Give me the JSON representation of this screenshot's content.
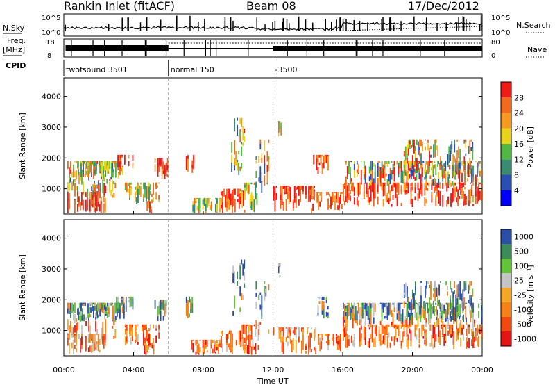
{
  "header": {
    "station": "Rankin Inlet (fitACF)",
    "beam": "Beam 08",
    "date": "17/Dec/2012"
  },
  "strip_labels": {
    "nsky": "N.Sky",
    "freq": "Freq.",
    "freq_unit": "[MHz]",
    "cpid": "CPID",
    "nsearch": "N.Search",
    "nave": "Nave"
  },
  "strip_ticks": {
    "nsky_top": "10^5",
    "nsky_bottom": "10^0",
    "freq_top": "18",
    "freq_bottom": "8",
    "nave_top": "80",
    "nave_bottom": "0"
  },
  "cpid_segments": [
    {
      "label": "twofsound 3501",
      "start": 0,
      "end": 6
    },
    {
      "label": "normal 150",
      "start": 6,
      "end": 12
    },
    {
      "label": "-3500",
      "start": 12,
      "end": 24
    }
  ],
  "colors": {
    "power": [
      "#0000ff",
      "#2a4fb0",
      "#3b8a72",
      "#52b844",
      "#e8d21b",
      "#f59a20",
      "#f26a1b",
      "#ee1b16"
    ],
    "velocity": [
      "#e61515",
      "#f04a10",
      "#f58218",
      "#f5a628",
      "#c4c4c4",
      "#62c436",
      "#3c8c5a",
      "#2b4ea8"
    ]
  },
  "chart_data": [
    {
      "type": "heatmap",
      "title": "",
      "ylabel": "Slant Range [km]",
      "xlabel": "Time UT",
      "x_range_hours": [
        0,
        24
      ],
      "ylim": [
        180,
        4600
      ],
      "xticks": [
        "00:00",
        "04:00",
        "08:00",
        "12:00",
        "16:00",
        "20:00",
        "00:00"
      ],
      "yticks": [
        1000,
        2000,
        3000,
        4000
      ],
      "colorbar": {
        "label": "Power [dB]",
        "ticks": [
          "4",
          "8",
          "12",
          "16",
          "20",
          "24",
          "28"
        ]
      }
    },
    {
      "type": "heatmap",
      "title": "",
      "ylabel": "Slant Range [km]",
      "xlabel": "Time UT",
      "x_range_hours": [
        0,
        24
      ],
      "ylim": [
        180,
        4600
      ],
      "xticks": [
        "00:00",
        "04:00",
        "08:00",
        "12:00",
        "16:00",
        "20:00",
        "00:00"
      ],
      "yticks": [
        1000,
        2000,
        3000,
        4000
      ],
      "colorbar": {
        "label": "Velocity [m s⁻¹]",
        "ticks": [
          "1000",
          "500",
          "100",
          "25",
          "-25",
          "-100",
          "-500",
          "-1000"
        ]
      }
    }
  ]
}
